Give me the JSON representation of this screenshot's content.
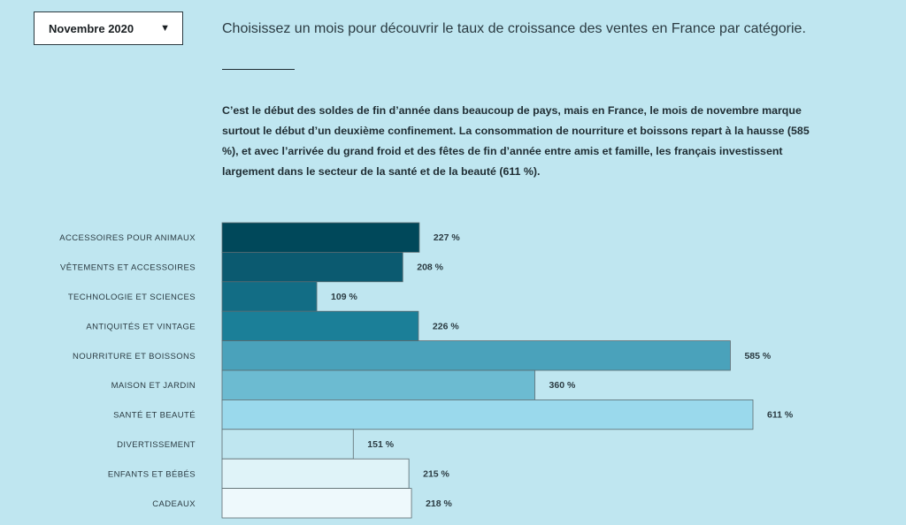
{
  "selector": {
    "value": "Novembre 2020",
    "caret": "▼",
    "caret_icon": "caret-down-icon"
  },
  "intro": "Choisissez un mois pour découvrir le taux de croissance des ventes en France par catégorie.",
  "paragraph": "C’est le début des soldes de fin d’année dans beaucoup de pays, mais en France, le mois de novembre marque surtout le début d’un deuxième confinement. La consommation de nourriture et boissons repart à la hausse (585 %), et avec l’arrivée du grand froid et des fêtes de fin d’année entre amis et famille, les français investissent largement dans le secteur de la santé et de la beauté (611 %).",
  "chart_data": {
    "type": "bar",
    "orientation": "horizontal",
    "categories": [
      "ACCESSOIRES POUR ANIMAUX",
      "VÊTEMENTS ET ACCESSOIRES",
      "TECHNOLOGIE ET SCIENCES",
      "ANTIQUITÉS ET VINTAGE",
      "NOURRITURE ET BOISSONS",
      "MAISON ET JARDIN",
      "SANTÉ ET BEAUTÉ",
      "DIVERTISSEMENT",
      "ENFANTS ET BÉBÉS",
      "CADEAUX"
    ],
    "values": [
      227,
      208,
      109,
      226,
      585,
      360,
      611,
      151,
      215,
      218
    ],
    "value_labels": [
      "227 %",
      "208 %",
      "109 %",
      "226 %",
      "585 %",
      "360 %",
      "611 %",
      "151 %",
      "215 %",
      "218 %"
    ],
    "colors": [
      "#00485a",
      "#0b5a70",
      "#126d85",
      "#1b7f98",
      "#4aa2bb",
      "#6cbbd1",
      "#9ad9ec",
      "#bfe6f0",
      "#dff3f8",
      "#eef9fc"
    ],
    "xlim": [
      0,
      611
    ],
    "grid": false,
    "legend": "none"
  }
}
